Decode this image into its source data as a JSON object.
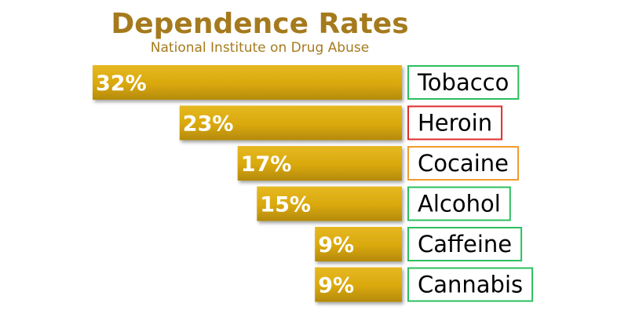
{
  "chart_data": {
    "type": "bar",
    "orientation": "horizontal",
    "title": "Dependence Rates",
    "subtitle": "National Institute on Drug Abuse",
    "categories": [
      "Tobacco",
      "Heroin",
      "Cocaine",
      "Alcohol",
      "Caffeine",
      "Cannabis"
    ],
    "values": [
      32,
      23,
      17,
      15,
      9,
      9
    ],
    "value_labels": [
      "32%",
      "23%",
      "17%",
      "15%",
      "9%",
      "9%"
    ],
    "label_box_colors": [
      "#2dbf5f",
      "#e02b2b",
      "#f29a2e",
      "#2dbf5f",
      "#2dbf5f",
      "#2dbf5f"
    ],
    "xlim": [
      0,
      32
    ],
    "grid": false,
    "legend": "none"
  },
  "colors": {
    "title": "#a57a1d",
    "subtitle": "#a57a1d",
    "bar": "#d9a80c",
    "bar_top": "#e6b822",
    "bar_bottom": "#b48a06"
  }
}
